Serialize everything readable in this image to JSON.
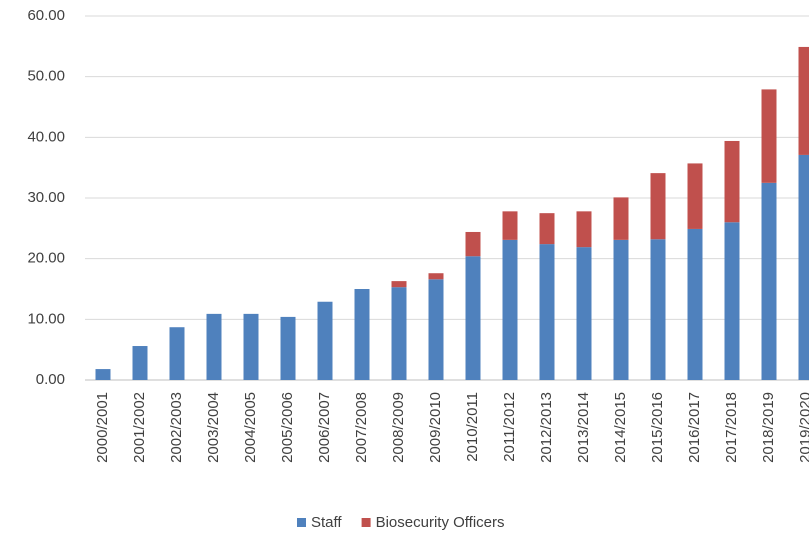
{
  "chart_data": {
    "type": "stacked_bar",
    "categories": [
      "2000/2001",
      "2001/2002",
      "2002/2003",
      "2003/2004",
      "2004/2005",
      "2005/2006",
      "2006/2007",
      "2007/2008",
      "2008/2009",
      "2009/2010",
      "2010/2011",
      "2011/2012",
      "2012/2013",
      "2013/2014",
      "2014/2015",
      "2015/2016",
      "2016/2017",
      "2017/2018",
      "2018/2019",
      "2019/2020"
    ],
    "series": [
      {
        "name": "Staff",
        "color": "#4f81bd",
        "values": [
          1.8,
          5.6,
          8.7,
          10.9,
          10.9,
          10.4,
          12.9,
          15.0,
          15.3,
          16.6,
          20.4,
          23.1,
          22.4,
          21.9,
          23.1,
          23.2,
          24.9,
          26.0,
          32.5,
          37.1
        ]
      },
      {
        "name": "Biosecurity Officers",
        "color": "#c0504d",
        "values": [
          0,
          0,
          0,
          0,
          0,
          0,
          0,
          0,
          1.0,
          1.0,
          4.0,
          4.7,
          5.1,
          5.9,
          7.0,
          10.9,
          10.8,
          13.4,
          15.4,
          17.8
        ]
      }
    ],
    "ylim": [
      0,
      60
    ],
    "yticks": [
      {
        "value": 0,
        "label": "0.00"
      },
      {
        "value": 10,
        "label": "10.00"
      },
      {
        "value": 20,
        "label": "20.00"
      },
      {
        "value": 30,
        "label": "30.00"
      },
      {
        "value": 40,
        "label": "40.00"
      },
      {
        "value": 50,
        "label": "50.00"
      },
      {
        "value": 60,
        "label": "60.00"
      }
    ],
    "grid": true,
    "legend": "bottom"
  }
}
